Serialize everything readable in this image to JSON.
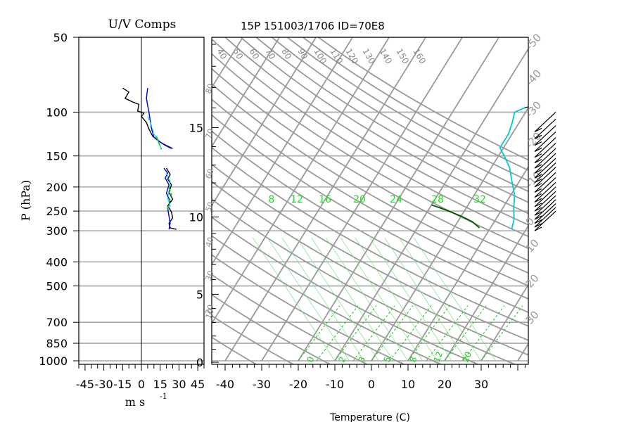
{
  "chart_data": [
    {
      "type": "line",
      "title": "U/V Comps",
      "xlabel": "m s",
      "xlabel_exponent": "-1",
      "ylabel": "P (hPa)",
      "x_ticks": [
        -45,
        -30,
        -15,
        0,
        15,
        30,
        45
      ],
      "xlim": [
        -50,
        50
      ],
      "pressure_ticks": [
        50,
        100,
        150,
        200,
        250,
        300,
        400,
        500,
        700,
        850,
        1000
      ],
      "y_scale": "log",
      "ylim": [
        1000,
        50
      ],
      "series": [
        {
          "color": "#000000",
          "points": [
            [
              -15,
              80
            ],
            [
              -10,
              83
            ],
            [
              -13,
              88
            ],
            [
              -7,
              91
            ],
            [
              -2,
              93
            ],
            [
              -3,
              99
            ],
            [
              2,
              101
            ],
            [
              0,
              104
            ],
            [
              4,
              110
            ],
            [
              6,
              117
            ],
            [
              9,
              125
            ],
            [
              14,
              131
            ],
            [
              19,
              136
            ],
            [
              24,
              140
            ]
          ]
        },
        {
          "color": "#0000cc",
          "points": [
            [
              5,
              80
            ],
            [
              4,
              88
            ],
            [
              5,
              94
            ],
            [
              6,
              100
            ],
            [
              7,
              108
            ],
            [
              8,
              116
            ],
            [
              10,
              126
            ],
            [
              16,
              133
            ],
            [
              21,
              137
            ],
            [
              25,
              140
            ]
          ]
        },
        {
          "color": "#00e0e0",
          "points": [
            [
              5,
              104
            ],
            [
              8,
              113
            ],
            [
              10,
              122
            ],
            [
              13,
              130
            ],
            [
              15,
              137
            ],
            [
              16,
              141
            ]
          ]
        },
        {
          "color": "#00cc00",
          "points": [
            [
              12,
              125
            ],
            [
              14,
              133
            ],
            [
              16,
              141
            ]
          ]
        },
        {
          "color": "#000000",
          "points": [
            [
              20,
              168
            ],
            [
              23,
              178
            ],
            [
              21,
              186
            ],
            [
              24,
              196
            ],
            [
              22,
              210
            ],
            [
              25,
              224
            ],
            [
              21,
              238
            ],
            [
              24,
              252
            ],
            [
              25,
              266
            ],
            [
              22,
              280
            ],
            [
              23,
              292
            ],
            [
              28,
              296
            ]
          ]
        },
        {
          "color": "#0000cc",
          "points": [
            [
              18,
              168
            ],
            [
              21,
              176
            ],
            [
              19,
              184
            ],
            [
              22,
              196
            ],
            [
              20,
              212
            ],
            [
              23,
              228
            ],
            [
              21,
              244
            ],
            [
              22,
              262
            ],
            [
              23,
              280
            ],
            [
              22,
              296
            ]
          ]
        },
        {
          "color": "#00e0e0",
          "points": [
            [
              20,
              176
            ],
            [
              23,
              190
            ],
            [
              22,
              206
            ],
            [
              21,
              222
            ],
            [
              23,
              240
            ]
          ]
        },
        {
          "color": "#00cc00",
          "points": [
            [
              22,
              200
            ],
            [
              24,
              214
            ],
            [
              22,
              232
            ],
            [
              21,
              250
            ]
          ]
        }
      ]
    },
    {
      "type": "line",
      "title": "15P 151003/1706 ID=70E8",
      "xlabel": "Temperature (C)",
      "x_ticks": [
        -40,
        -30,
        -20,
        -10,
        0,
        10,
        20,
        30
      ],
      "xlim": [
        -43,
        42
      ],
      "ylim": [
        1000,
        50
      ],
      "height_ticks": [
        0,
        5,
        10,
        15
      ],
      "mixing_ratio_labels": [
        "8",
        "12",
        "16",
        "20",
        "24",
        "28",
        "32"
      ],
      "theta_labels": [
        "40",
        "50",
        "60",
        "70",
        "80",
        "90",
        "100",
        "110",
        "120",
        "130",
        "140",
        "150",
        "160"
      ],
      "isotherm_labels": [
        "-50",
        "-40",
        "-30",
        "-20",
        "-10",
        "0",
        "10",
        "20",
        "30"
      ],
      "bottom_labels": [
        "0",
        "2",
        "3",
        "5",
        "8",
        "12",
        "20"
      ],
      "side_labels": [
        "80",
        "70",
        "60",
        "50",
        "40",
        "30",
        "20",
        "10"
      ],
      "series": [
        {
          "name": "",
          "color": "#000000",
          "points": [
            [
              18,
              80
            ],
            [
              14,
              83
            ],
            [
              10,
              84
            ],
            [
              7,
              87
            ],
            [
              4,
              91
            ],
            [
              -1,
              96
            ],
            [
              -3,
              100
            ],
            [
              -2,
              109
            ],
            [
              -1,
              122
            ],
            [
              -1,
              139
            ],
            [
              2,
              152
            ],
            [
              5,
              167
            ],
            [
              8,
              190
            ],
            [
              11,
              215
            ],
            [
              13,
              243
            ],
            [
              15,
              270
            ],
            [
              16,
              295
            ]
          ]
        },
        {
          "name": "",
          "color": "#00cccc",
          "points": [
            [
              -1,
              96
            ],
            [
              -3,
              100
            ],
            [
              -2,
              109
            ],
            [
              -1,
              122
            ],
            [
              -1,
              139
            ],
            [
              2,
              152
            ],
            [
              5,
              167
            ],
            [
              8,
              190
            ],
            [
              11,
              215
            ],
            [
              13,
              243
            ],
            [
              15,
              270
            ],
            [
              16,
              295
            ]
          ]
        },
        {
          "name": "",
          "color": "#005500",
          "points": [
            [
              -10,
              236
            ],
            [
              -5,
              248
            ],
            [
              0,
              262
            ],
            [
              4,
              276
            ],
            [
              7,
              292
            ]
          ]
        }
      ],
      "wind_barbs_pressures": [
        120,
        128,
        136,
        144,
        152,
        160,
        168,
        176,
        184,
        192,
        200,
        210,
        220,
        230,
        240,
        250,
        260,
        270,
        280,
        290,
        300
      ]
    }
  ]
}
